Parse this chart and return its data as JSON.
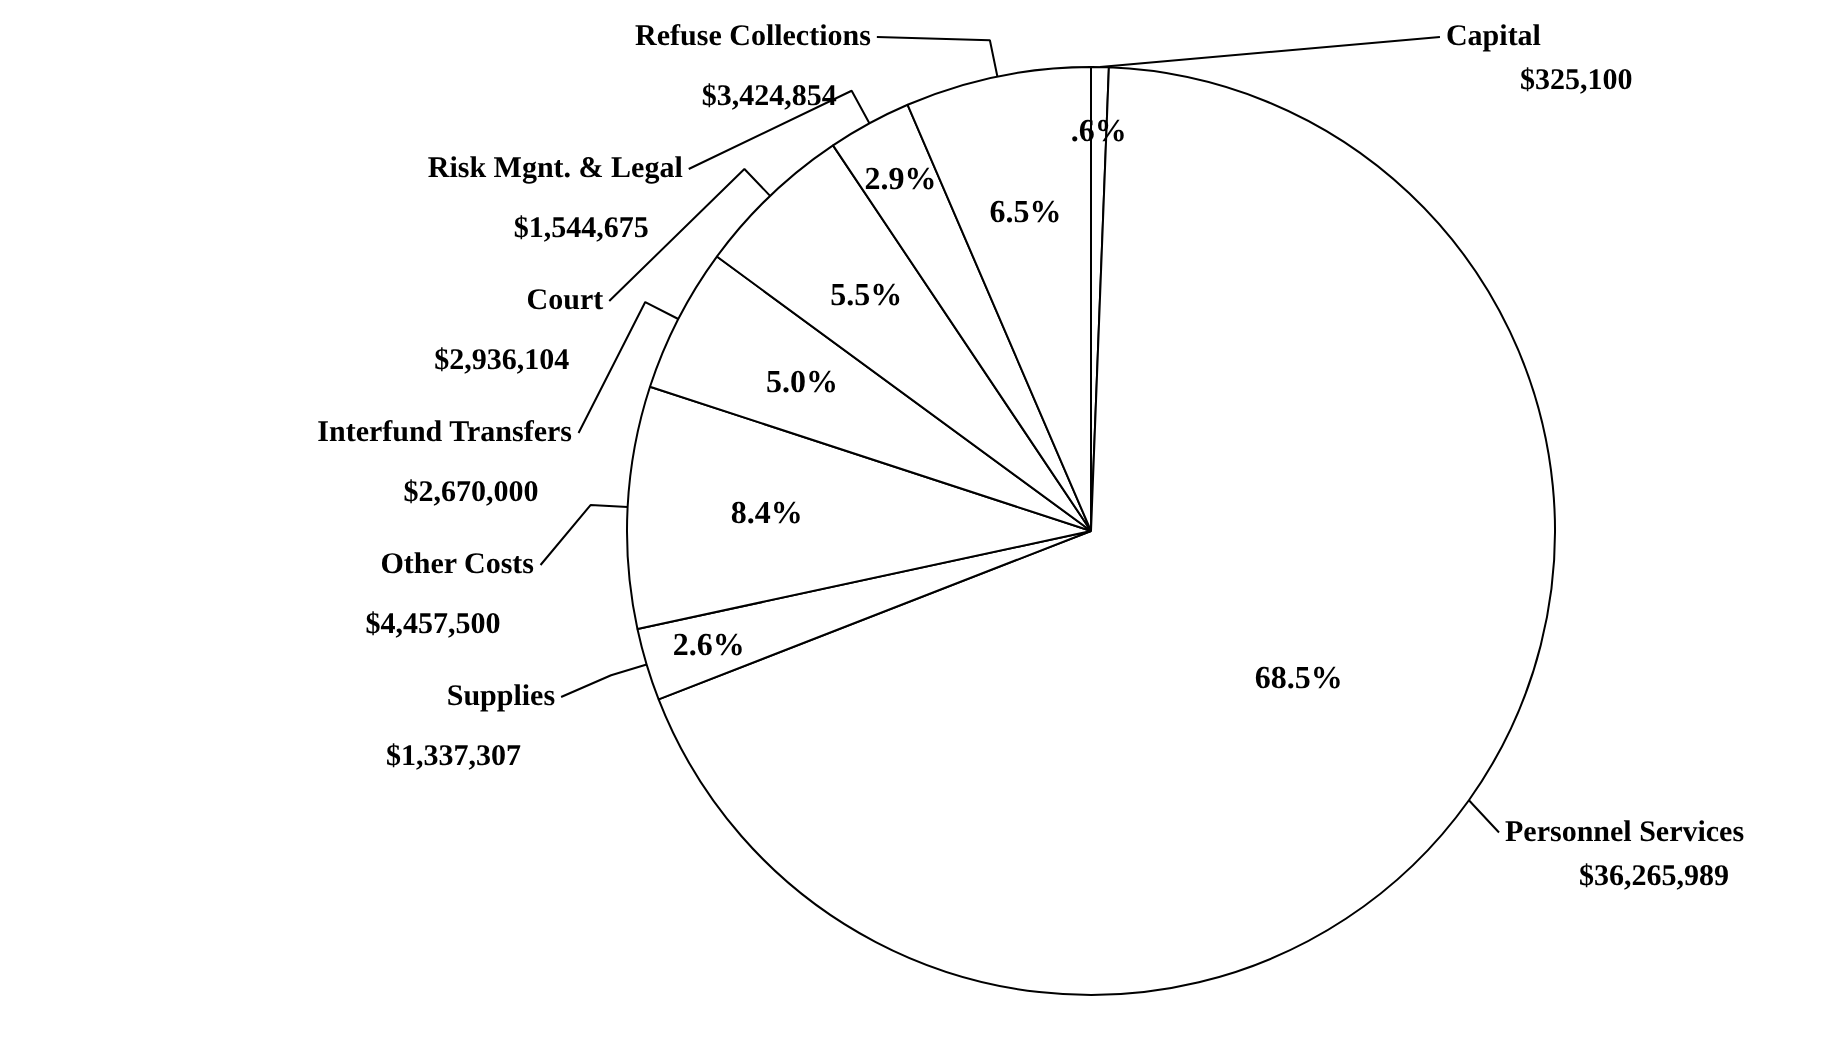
{
  "chart_data": {
    "type": "pie",
    "categories": [
      "Capital",
      "Personnel Services",
      "Supplies",
      "Other Costs",
      "Interfund Transfers",
      "Court",
      "Risk Mgnt. & Legal",
      "Refuse Collections"
    ],
    "values": [
      325100,
      36265989,
      1337307,
      4457500,
      2670000,
      2936104,
      1544675,
      3424854
    ],
    "value_labels": [
      "$325,100",
      "$36,265,989",
      "$1,337,307",
      "$4,457,500",
      "$2,670,000",
      "$2,936,104",
      "$1,544,675",
      "$3,424,854"
    ],
    "colors": [
      "#ffffff",
      "#ffffff",
      "#ffffff",
      "#ffffff",
      "#ffffff",
      "#ffffff",
      "#ffffff",
      "#ffffff"
    ],
    "annotations": [
      {
        "text": ".6%",
        "x": "Capital"
      },
      {
        "text": "68.5%",
        "x": "Personnel Services"
      },
      {
        "text": "2.6%",
        "x": "Supplies"
      },
      {
        "text": "8.4%",
        "x": "Other Costs"
      },
      {
        "text": "5.0%",
        "x": "Interfund Transfers"
      },
      {
        "text": "5.5%",
        "x": "Court"
      },
      {
        "text": "2.9%",
        "x": "Risk Mgnt. & Legal"
      },
      {
        "text": "6.5%",
        "x": "Refuse Collections"
      }
    ],
    "legend": false
  }
}
